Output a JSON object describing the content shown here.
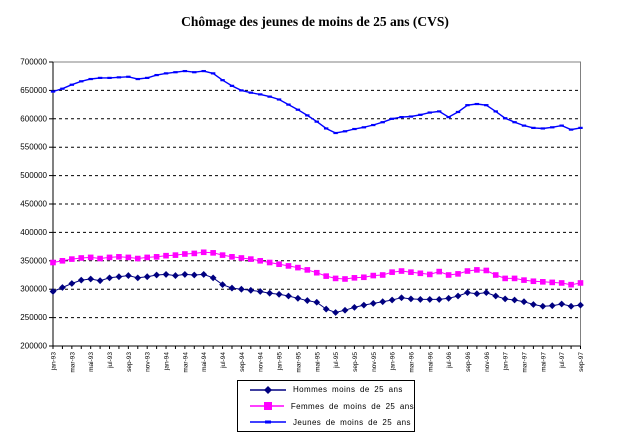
{
  "chart": {
    "title": "Chômage des jeunes de moins de 25 ans (CVS)"
  },
  "chart_data": {
    "type": "line",
    "title": "Chômage des jeunes de moins de 25 ans (CVS)",
    "grid": "horizontal-dashed-black",
    "legend_position": "bottom-center-boxed",
    "plot_border_color": "#808080",
    "x_months_count": 57,
    "x_tick_labels": [
      "jan-93",
      "mar-93",
      "mai-93",
      "jul-93",
      "sep-93",
      "nov-93",
      "jan-94",
      "mar-94",
      "mai-94",
      "jul-94",
      "sep-94",
      "nov-94",
      "jan-95",
      "mar-95",
      "mai-95",
      "jul-95",
      "sep-95",
      "nov-95",
      "jan-96",
      "mar-96",
      "mai-96",
      "jul-96",
      "sep-96",
      "nov-96",
      "jan-97",
      "mar-97",
      "mai-97",
      "jul-97",
      "sep-97"
    ],
    "y_axis": {
      "min": 200000,
      "max": 700000,
      "step": 50000,
      "tick_labels": [
        "200000",
        "250000",
        "300000",
        "350000",
        "400000",
        "450000",
        "500000",
        "550000",
        "600000",
        "650000",
        "700000"
      ]
    },
    "series": [
      {
        "name": "Hommes  moins  de 25 ans",
        "color": "#000080",
        "marker": "diamond",
        "values": [
          296000,
          303000,
          310000,
          316000,
          318000,
          315000,
          320000,
          322000,
          324000,
          320000,
          322000,
          325000,
          326000,
          324000,
          326000,
          325000,
          326000,
          320000,
          308000,
          302000,
          300000,
          298000,
          296000,
          293000,
          291000,
          288000,
          284000,
          280000,
          277000,
          265000,
          259000,
          263000,
          268000,
          272000,
          275000,
          278000,
          281000,
          285000,
          283000,
          282000,
          282000,
          282000,
          284000,
          288000,
          294000,
          292000,
          294000,
          288000,
          283000,
          281000,
          278000,
          273000,
          270000,
          271000,
          274000,
          270000,
          272000
        ]
      },
      {
        "name": "Femmes de moins de 25 ans",
        "color": "#FF00FF",
        "marker": "square",
        "values": [
          347000,
          350000,
          353000,
          355000,
          356000,
          354000,
          356000,
          357000,
          356000,
          354000,
          356000,
          357000,
          359000,
          360000,
          362000,
          363000,
          365000,
          364000,
          360000,
          357000,
          355000,
          353000,
          350000,
          347000,
          344000,
          341000,
          338000,
          334000,
          329000,
          323000,
          319000,
          318000,
          320000,
          321000,
          324000,
          325000,
          330000,
          332000,
          330000,
          328000,
          326000,
          331000,
          325000,
          327000,
          332000,
          334000,
          333000,
          325000,
          319000,
          319000,
          316000,
          314000,
          313000,
          312000,
          311000,
          308000,
          311000
        ]
      },
      {
        "name": "Jeunes  de moins  de 25 ans",
        "color": "#0000FF",
        "marker": "dash",
        "values": [
          648000,
          653000,
          660000,
          666000,
          670000,
          672000,
          672000,
          673000,
          674000,
          670000,
          672000,
          677000,
          680000,
          682000,
          684000,
          682000,
          684000,
          680000,
          668000,
          658000,
          650000,
          646000,
          643000,
          639000,
          634000,
          625000,
          616000,
          606000,
          595000,
          583000,
          575000,
          578000,
          582000,
          585000,
          589000,
          594000,
          600000,
          603000,
          604000,
          607000,
          611000,
          613000,
          603000,
          612000,
          624000,
          626000,
          624000,
          613000,
          601000,
          594000,
          588000,
          584000,
          583000,
          585000,
          588000,
          581000,
          584000
        ]
      }
    ]
  }
}
